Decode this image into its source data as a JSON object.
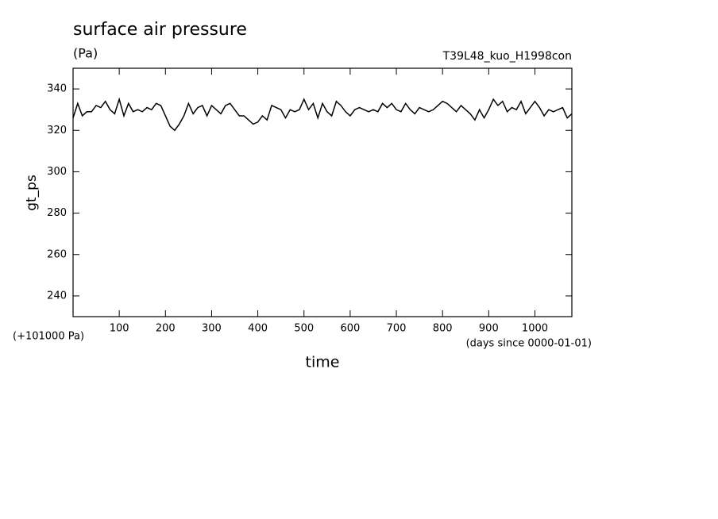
{
  "chart_data": {
    "type": "line",
    "title": "surface air pressure",
    "subtitle": "(Pa)",
    "annotation": "T39L48_kuo_H1998con",
    "y_label": "gt_ps",
    "y_offset_label": "(+101000 Pa)",
    "x_label": "time",
    "x_units_label": "(days since 0000-01-01)",
    "xlim": [
      0,
      1080
    ],
    "ylim": [
      230,
      350
    ],
    "xticks": [
      100,
      200,
      300,
      400,
      500,
      600,
      700,
      800,
      900,
      1000
    ],
    "yticks": [
      240,
      260,
      280,
      300,
      320,
      340
    ],
    "grid": false,
    "x": [
      0,
      10,
      20,
      30,
      40,
      50,
      60,
      70,
      80,
      90,
      100,
      110,
      120,
      130,
      140,
      150,
      160,
      170,
      180,
      190,
      200,
      210,
      220,
      230,
      240,
      250,
      260,
      270,
      280,
      290,
      300,
      310,
      320,
      330,
      340,
      350,
      360,
      370,
      380,
      390,
      400,
      410,
      420,
      430,
      440,
      450,
      460,
      470,
      480,
      490,
      500,
      510,
      520,
      530,
      540,
      550,
      560,
      570,
      580,
      590,
      600,
      610,
      620,
      630,
      640,
      650,
      660,
      670,
      680,
      690,
      700,
      710,
      720,
      730,
      740,
      750,
      760,
      770,
      780,
      790,
      800,
      810,
      820,
      830,
      840,
      850,
      860,
      870,
      880,
      890,
      900,
      910,
      920,
      930,
      940,
      950,
      960,
      970,
      980,
      990,
      1000,
      1010,
      1020,
      1030,
      1040,
      1050,
      1060,
      1070,
      1080
    ],
    "series": [
      {
        "color": "#000000",
        "values": [
          326,
          333,
          327,
          329,
          329,
          332,
          331,
          334,
          330,
          328,
          335,
          327,
          333,
          329,
          330,
          329,
          331,
          330,
          333,
          332,
          327,
          322,
          320,
          323,
          327,
          333,
          328,
          331,
          332,
          327,
          332,
          330,
          328,
          332,
          333,
          330,
          327,
          327,
          325,
          323,
          324,
          327,
          325,
          332,
          331,
          330,
          326,
          330,
          329,
          330,
          335,
          330,
          333,
          326,
          333,
          329,
          327,
          334,
          332,
          329,
          327,
          330,
          331,
          330,
          329,
          330,
          329,
          333,
          331,
          333,
          330,
          329,
          333,
          330,
          328,
          331,
          330,
          329,
          330,
          332,
          334,
          333,
          331,
          329,
          332,
          330,
          328,
          325,
          330,
          326,
          330,
          335,
          332,
          334,
          329,
          331,
          330,
          334,
          328,
          331,
          334,
          331,
          327,
          330,
          329,
          330,
          331,
          326,
          328
        ]
      }
    ]
  }
}
